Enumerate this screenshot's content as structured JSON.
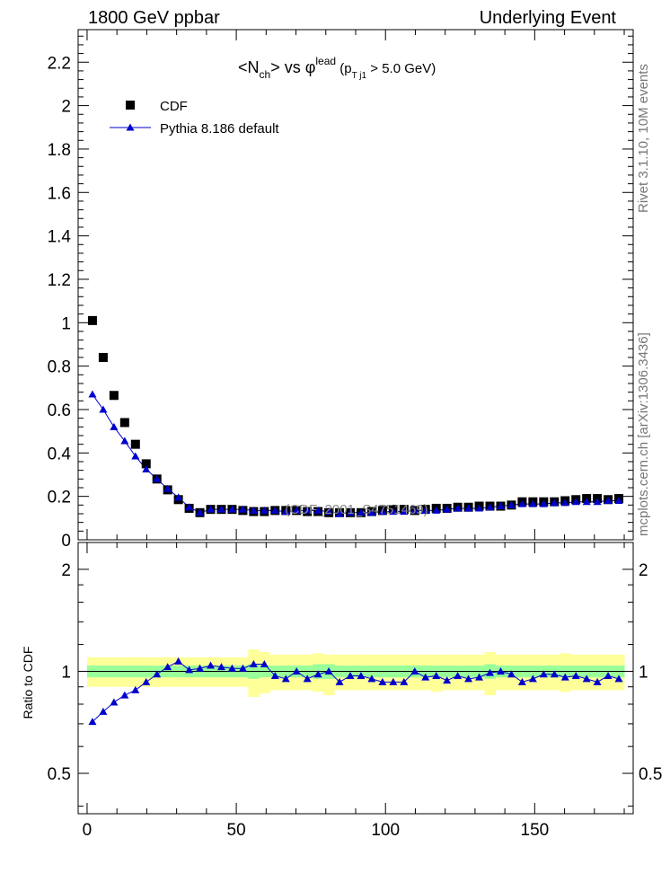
{
  "header": {
    "left": "1800 GeV ppbar",
    "right": "Underlying Event"
  },
  "plot_title": {
    "open": "<N",
    "sub1": "ch",
    "mid": "> vs φ",
    "sup": "lead",
    "paren_open": " (p",
    "sub2": "T j1",
    "paren_close": " > 5.0 GeV)"
  },
  "watermark": "(CDF_2001_S4751469)",
  "side_labels": {
    "rivet": "Rivet 3.1.10,  10M events",
    "mcplots": "mcplots.cern.ch [arXiv:1306.3436]"
  },
  "legend": {
    "data_label": "CDF",
    "mc_label": "Pythia 8.186 default"
  },
  "colors": {
    "data": "#000000",
    "mc": "#0000cc",
    "band_inner": "#99ff99",
    "band_outer": "#ffff99"
  },
  "chart_data": [
    {
      "type": "scatter",
      "title": "<Nch> vs φlead (pTj1 > 5.0 GeV)",
      "xlim": [
        -3,
        183
      ],
      "ylim": [
        0,
        2.35
      ],
      "yticks": [
        0,
        0.2,
        0.4,
        0.6,
        0.8,
        1,
        1.2,
        1.4,
        1.6,
        1.8,
        2,
        2.2
      ],
      "ytick_labels": [
        "0",
        "0.2",
        "0.4",
        "0.6",
        "0.8",
        "1",
        "1.2",
        "1.4",
        "1.6",
        "1.8",
        "2",
        "2.2"
      ],
      "x": [
        1.8,
        5.4,
        9,
        12.6,
        16.2,
        19.8,
        23.4,
        27,
        30.6,
        34.2,
        37.8,
        41.4,
        45,
        48.6,
        52.2,
        55.8,
        59.4,
        63,
        66.6,
        70.2,
        73.8,
        77.4,
        81,
        84.6,
        88.2,
        91.8,
        95.4,
        99,
        102.6,
        106.2,
        109.8,
        113.4,
        117,
        120.6,
        124.2,
        127.8,
        131.4,
        135,
        138.6,
        142.2,
        145.8,
        149.4,
        153,
        156.6,
        160.2,
        163.8,
        167.4,
        171,
        174.6,
        178.2
      ],
      "series": [
        {
          "name": "CDF",
          "values": [
            1.01,
            0.84,
            0.665,
            0.54,
            0.44,
            0.35,
            0.28,
            0.23,
            0.185,
            0.145,
            0.125,
            0.14,
            0.14,
            0.14,
            0.135,
            0.13,
            0.13,
            0.135,
            0.135,
            0.135,
            0.13,
            0.13,
            0.125,
            0.125,
            0.125,
            0.125,
            0.13,
            0.135,
            0.14,
            0.14,
            0.135,
            0.14,
            0.145,
            0.145,
            0.15,
            0.15,
            0.155,
            0.155,
            0.155,
            0.16,
            0.175,
            0.175,
            0.175,
            0.175,
            0.18,
            0.185,
            0.19,
            0.19,
            0.185,
            0.19
          ]
        },
        {
          "name": "Pythia 8.186 default",
          "values": [
            0.67,
            0.6,
            0.52,
            0.455,
            0.385,
            0.325,
            0.28,
            0.235,
            0.195,
            0.15,
            0.125,
            0.14,
            0.14,
            0.14,
            0.14,
            0.135,
            0.135,
            0.135,
            0.13,
            0.135,
            0.135,
            0.135,
            0.13,
            0.12,
            0.125,
            0.125,
            0.125,
            0.13,
            0.13,
            0.13,
            0.135,
            0.135,
            0.135,
            0.14,
            0.145,
            0.145,
            0.145,
            0.15,
            0.155,
            0.16,
            0.165,
            0.165,
            0.165,
            0.17,
            0.17,
            0.175,
            0.175,
            0.175,
            0.18,
            0.18
          ]
        }
      ]
    },
    {
      "type": "scatter",
      "ylabel": "Ratio to CDF",
      "xlim": [
        -3,
        183
      ],
      "ylim": [
        0.38,
        2.4
      ],
      "log_y": true,
      "yticks": [
        0.5,
        1,
        2
      ],
      "ytick_labels": [
        "0.5",
        "1",
        "2"
      ],
      "xticks": [
        0,
        50,
        100,
        150
      ],
      "xtick_labels": [
        "0",
        "50",
        "100",
        "150"
      ],
      "band_inner_halfwidth": [
        0.04,
        0.04,
        0.04,
        0.04,
        0.04,
        0.04,
        0.04,
        0.04,
        0.04,
        0.04,
        0.04,
        0.04,
        0.04,
        0.04,
        0.04,
        0.05,
        0.04,
        0.04,
        0.04,
        0.04,
        0.04,
        0.05,
        0.05,
        0.04,
        0.04,
        0.04,
        0.04,
        0.04,
        0.04,
        0.04,
        0.04,
        0.04,
        0.04,
        0.04,
        0.04,
        0.04,
        0.04,
        0.05,
        0.04,
        0.04,
        0.04,
        0.04,
        0.04,
        0.04,
        0.04,
        0.04,
        0.04,
        0.04,
        0.04,
        0.04
      ],
      "band_outer_lower": [
        0.9,
        0.9,
        0.9,
        0.9,
        0.9,
        0.9,
        0.9,
        0.9,
        0.9,
        0.9,
        0.9,
        0.9,
        0.9,
        0.9,
        0.9,
        0.84,
        0.86,
        0.88,
        0.88,
        0.88,
        0.88,
        0.87,
        0.85,
        0.88,
        0.88,
        0.88,
        0.88,
        0.88,
        0.88,
        0.88,
        0.88,
        0.88,
        0.87,
        0.88,
        0.88,
        0.88,
        0.88,
        0.85,
        0.88,
        0.88,
        0.88,
        0.88,
        0.88,
        0.88,
        0.87,
        0.88,
        0.88,
        0.88,
        0.88,
        0.88
      ],
      "band_outer_upper": [
        1.1,
        1.1,
        1.1,
        1.1,
        1.1,
        1.1,
        1.1,
        1.1,
        1.1,
        1.1,
        1.1,
        1.1,
        1.1,
        1.1,
        1.1,
        1.16,
        1.14,
        1.12,
        1.12,
        1.12,
        1.12,
        1.13,
        1.12,
        1.12,
        1.12,
        1.12,
        1.12,
        1.12,
        1.12,
        1.12,
        1.12,
        1.12,
        1.12,
        1.12,
        1.12,
        1.12,
        1.12,
        1.14,
        1.12,
        1.12,
        1.12,
        1.12,
        1.12,
        1.12,
        1.13,
        1.12,
        1.12,
        1.12,
        1.12,
        1.12
      ],
      "series": [
        {
          "name": "Pythia 8.186 default",
          "values": [
            0.71,
            0.76,
            0.81,
            0.85,
            0.88,
            0.93,
            0.98,
            1.03,
            1.07,
            1.01,
            1.02,
            1.04,
            1.03,
            1.02,
            1.02,
            1.05,
            1.05,
            0.97,
            0.95,
            1.0,
            0.95,
            0.98,
            1.0,
            0.93,
            0.97,
            0.97,
            0.95,
            0.93,
            0.93,
            0.93,
            1.0,
            0.96,
            0.97,
            0.94,
            0.97,
            0.95,
            0.96,
            0.99,
            1.0,
            0.98,
            0.93,
            0.95,
            0.98,
            0.98,
            0.96,
            0.97,
            0.95,
            0.93,
            0.97,
            0.95
          ]
        }
      ]
    }
  ]
}
